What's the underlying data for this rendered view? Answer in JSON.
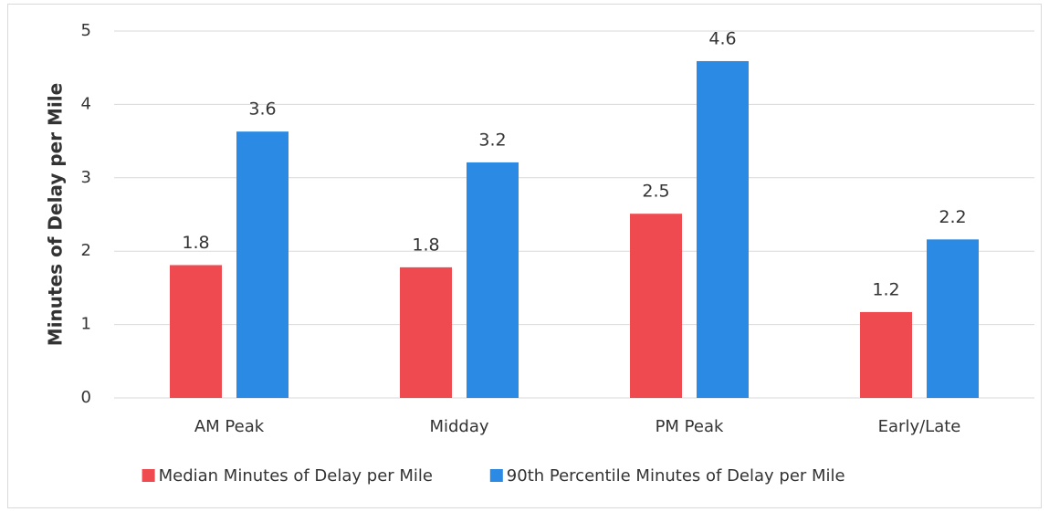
{
  "chart_data": {
    "type": "bar",
    "y_label": "Minutes of Delay per Mile",
    "categories": [
      "AM Peak",
      "Midday",
      "PM Peak",
      "Early/Late"
    ],
    "series": [
      {
        "name": "Median Minutes of Delay per Mile",
        "color": "#ef4a4f",
        "values": [
          1.81,
          1.78,
          2.51,
          1.17
        ],
        "value_labels": [
          "1.8",
          "1.8",
          "2.5",
          "1.2"
        ]
      },
      {
        "name": "90th Percentile Minutes of Delay per Mile",
        "color": "#2a8ae4",
        "values": [
          3.63,
          3.21,
          4.59,
          2.16
        ],
        "value_labels": [
          "3.6",
          "3.2",
          "4.6",
          "2.2"
        ]
      }
    ],
    "ylim": [
      0,
      5
    ],
    "yticks": [
      0,
      1,
      2,
      3,
      4,
      5
    ],
    "grid": true,
    "legend": "bottom"
  }
}
